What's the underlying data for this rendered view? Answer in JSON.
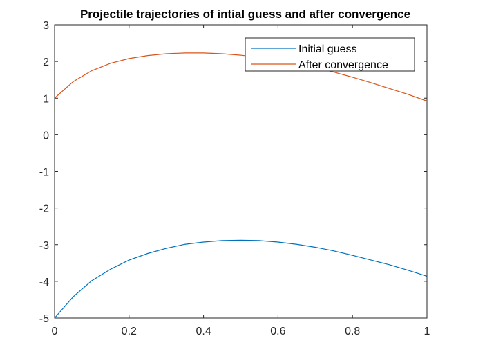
{
  "chart_data": {
    "type": "line",
    "title": "Projectile trajectories of intial guess and after convergence",
    "xlabel": "",
    "ylabel": "",
    "xlim": [
      0,
      1
    ],
    "ylim": [
      -5,
      3
    ],
    "xticks": [
      0,
      0.2,
      0.4,
      0.6,
      0.8,
      1
    ],
    "xtick_labels": [
      "0",
      "0.2",
      "0.4",
      "0.6",
      "0.8",
      "1"
    ],
    "yticks": [
      3,
      2,
      1,
      0,
      -1,
      -2,
      -3,
      -4,
      -5
    ],
    "ytick_labels": [
      "3",
      "2",
      "1",
      "0",
      "-1",
      "-2",
      "-3",
      "-4",
      "-5"
    ],
    "grid": false,
    "legend": {
      "position": "top-right"
    },
    "series": [
      {
        "name": "Initial guess",
        "color": "#0072BD",
        "x": [
          0,
          0.05,
          0.1,
          0.15,
          0.2,
          0.25,
          0.3,
          0.35,
          0.4,
          0.45,
          0.5,
          0.55,
          0.6,
          0.65,
          0.7,
          0.75,
          0.8,
          0.85,
          0.9,
          0.95,
          1
        ],
        "y": [
          -5,
          -4.42,
          -3.98,
          -3.67,
          -3.42,
          -3.24,
          -3.1,
          -2.99,
          -2.93,
          -2.89,
          -2.88,
          -2.89,
          -2.93,
          -2.99,
          -3.07,
          -3.17,
          -3.29,
          -3.42,
          -3.55,
          -3.7,
          -3.86
        ]
      },
      {
        "name": "After convergence",
        "color": "#D95319",
        "x": [
          0,
          0.05,
          0.1,
          0.15,
          0.2,
          0.25,
          0.3,
          0.35,
          0.4,
          0.45,
          0.5,
          0.55,
          0.6,
          0.65,
          0.7,
          0.75,
          0.8,
          0.85,
          0.9,
          0.95,
          1
        ],
        "y": [
          1,
          1.45,
          1.75,
          1.95,
          2.08,
          2.16,
          2.21,
          2.23,
          2.23,
          2.21,
          2.17,
          2.11,
          2.03,
          1.94,
          1.83,
          1.71,
          1.57,
          1.42,
          1.26,
          1.1,
          0.92
        ]
      }
    ]
  }
}
